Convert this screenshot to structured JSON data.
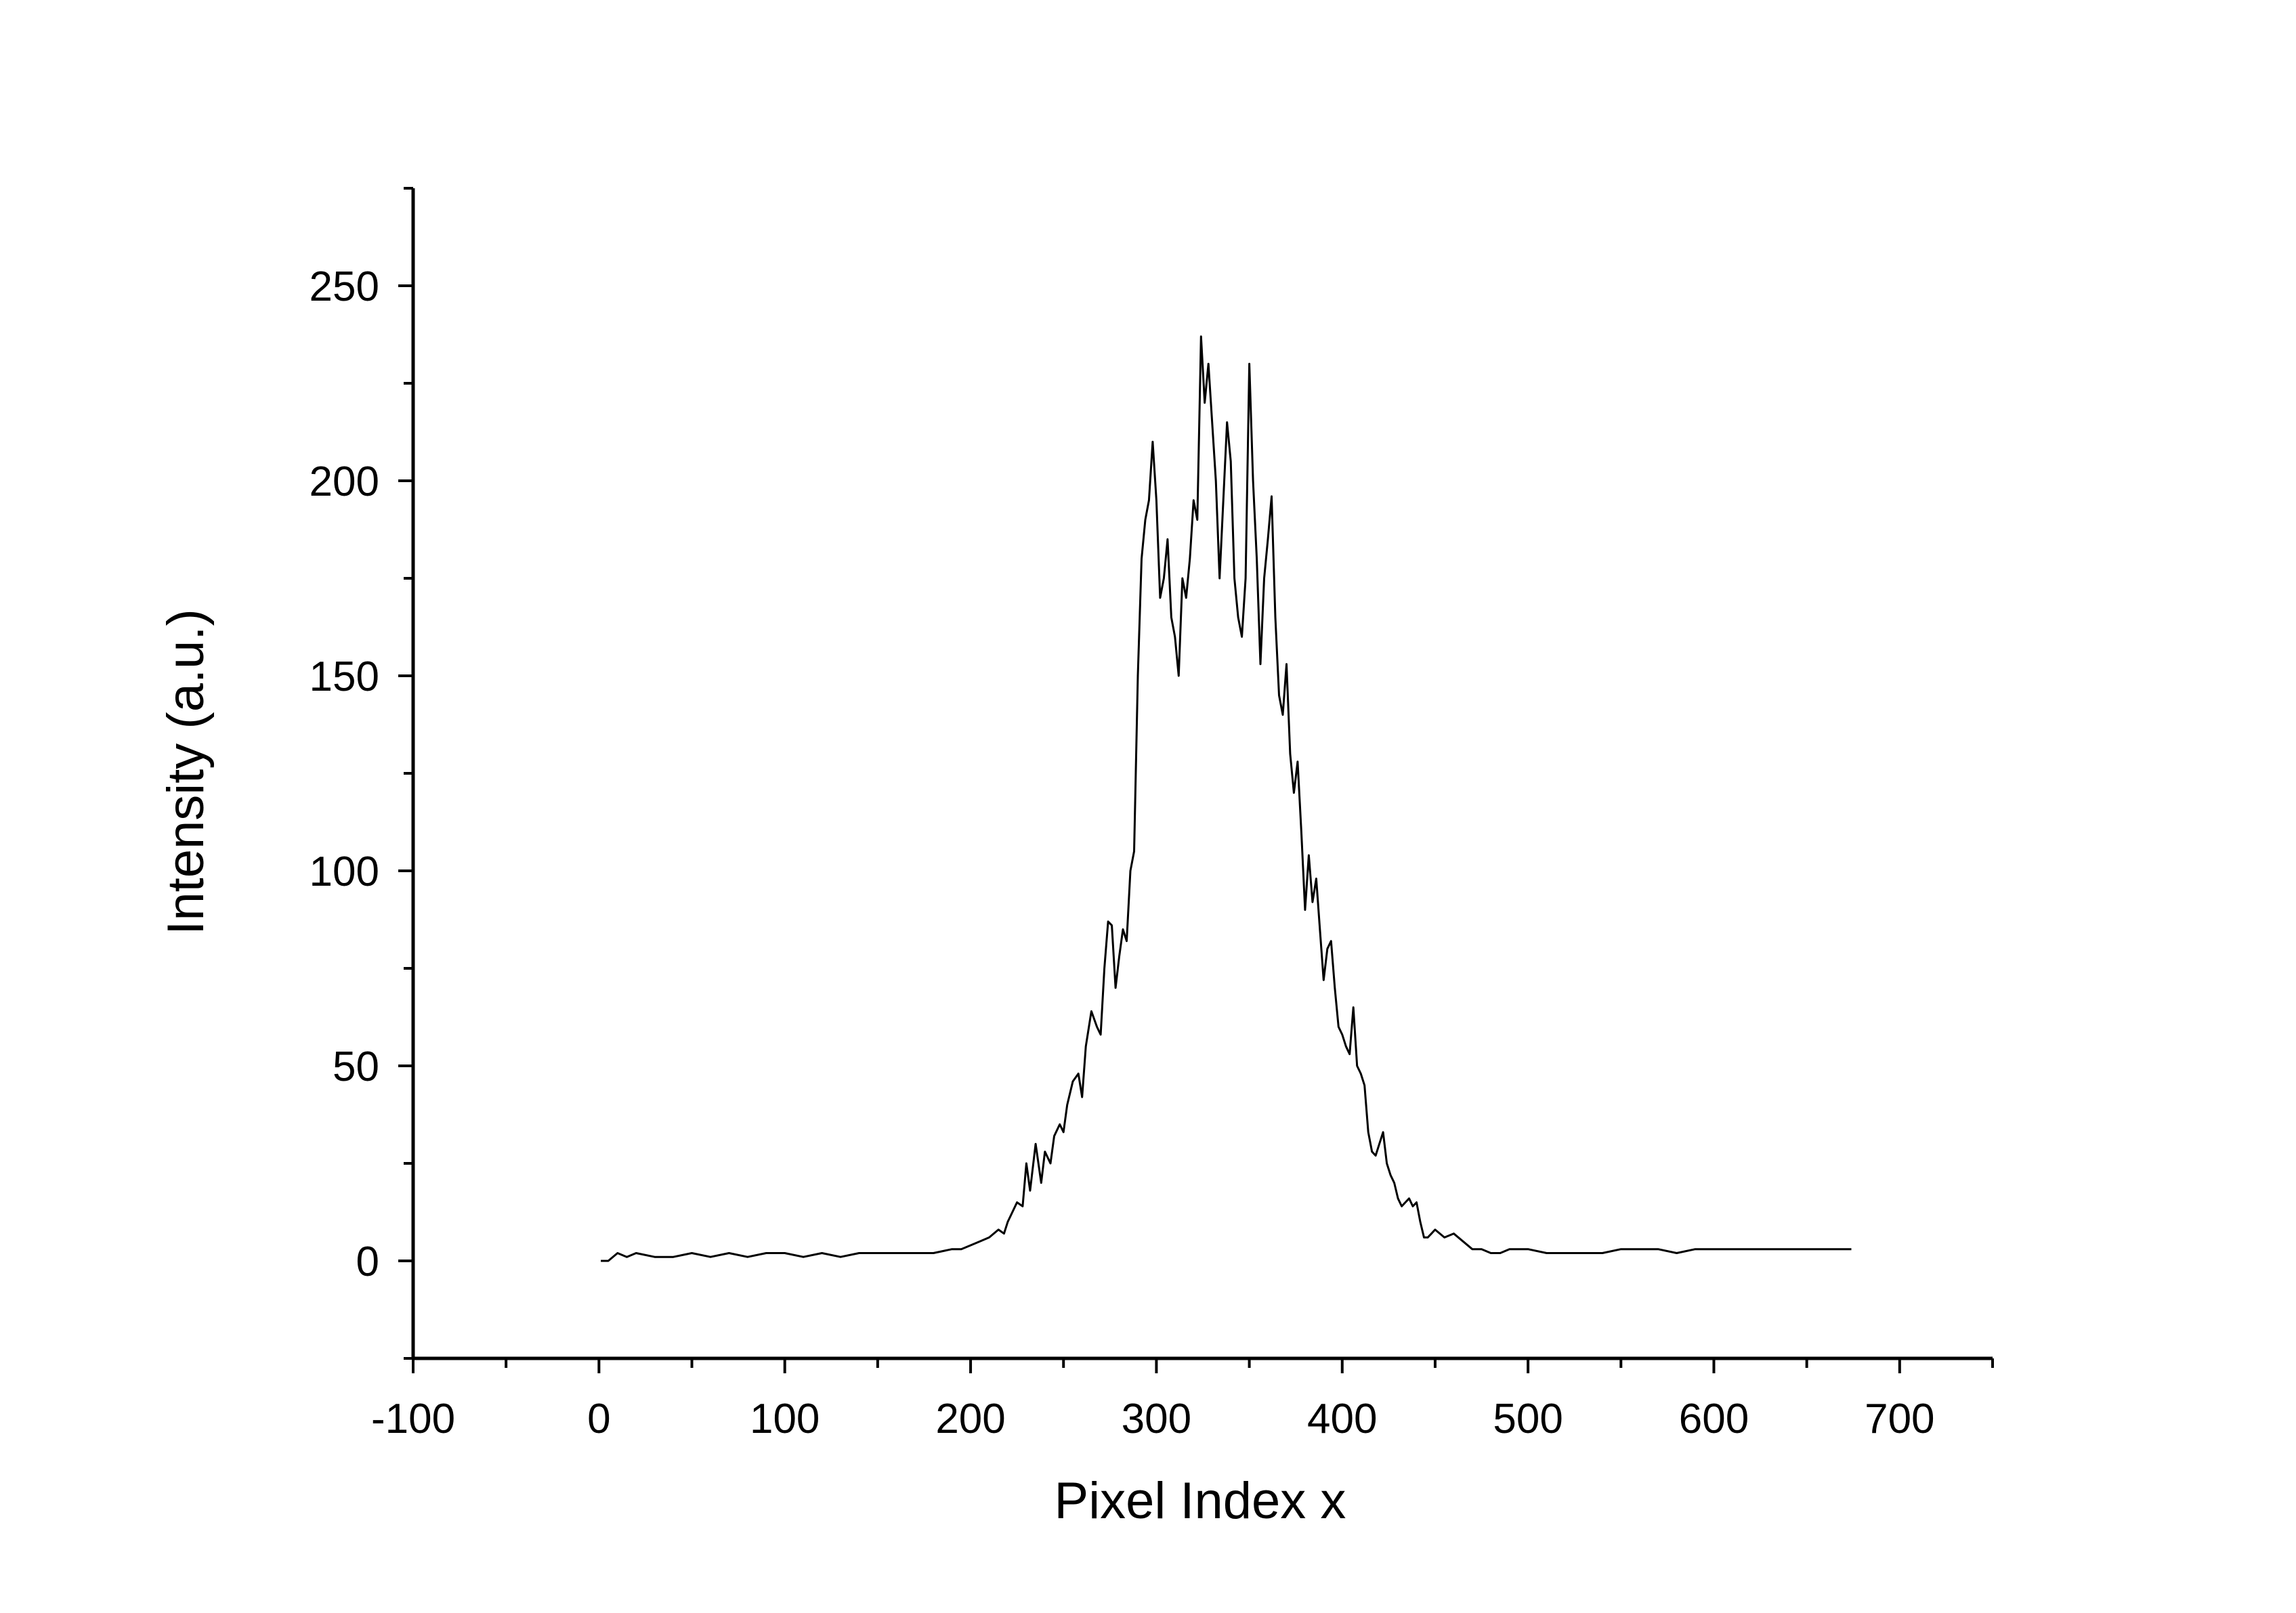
{
  "chart_data": {
    "type": "line",
    "title": "",
    "xlabel": "Pixel Index x",
    "ylabel": "Intensity (a.u.)",
    "xlim": [
      -100,
      750
    ],
    "ylim": [
      -25,
      275
    ],
    "x_ticks": [
      -100,
      0,
      100,
      200,
      300,
      400,
      500,
      600,
      700
    ],
    "x_tick_labels": [
      "-100",
      "0",
      "100",
      "200",
      "300",
      "400",
      "500",
      "600",
      "700"
    ],
    "y_ticks": [
      0,
      50,
      100,
      150,
      200,
      250
    ],
    "y_tick_labels": [
      "0",
      "50",
      "100",
      "150",
      "200",
      "250"
    ],
    "x_minor_step": 50,
    "y_minor_step": 25,
    "grid": false,
    "legend": "none",
    "line_color": "#000000",
    "series": [
      {
        "x": [
          1,
          5,
          10,
          15,
          20,
          30,
          40,
          50,
          60,
          70,
          80,
          90,
          100,
          110,
          120,
          130,
          140,
          150,
          160,
          170,
          180,
          190,
          195,
          200,
          205,
          210,
          215,
          218,
          220,
          222,
          225,
          228,
          230,
          232,
          235,
          238,
          240,
          243,
          245,
          248,
          250,
          252,
          255,
          258,
          260,
          262,
          265,
          268,
          270,
          272,
          274,
          276,
          278,
          280,
          282,
          284,
          286,
          288,
          290,
          292,
          294,
          296,
          298,
          300,
          302,
          304,
          306,
          308,
          310,
          312,
          314,
          316,
          318,
          320,
          322,
          324,
          326,
          328,
          330,
          332,
          334,
          336,
          338,
          340,
          342,
          344,
          346,
          348,
          350,
          352,
          354,
          356,
          358,
          360,
          362,
          364,
          366,
          368,
          370,
          372,
          374,
          376,
          378,
          380,
          382,
          384,
          386,
          388,
          390,
          392,
          394,
          396,
          398,
          400,
          402,
          404,
          406,
          408,
          410,
          412,
          414,
          416,
          418,
          420,
          422,
          424,
          426,
          428,
          430,
          432,
          434,
          436,
          438,
          440,
          442,
          444,
          446,
          448,
          450,
          455,
          460,
          465,
          470,
          475,
          480,
          485,
          490,
          500,
          510,
          520,
          530,
          540,
          550,
          560,
          570,
          580,
          590,
          600,
          610,
          620,
          630,
          640,
          650,
          660,
          670,
          674
        ],
        "y": [
          0,
          0,
          2,
          1,
          2,
          1,
          1,
          2,
          1,
          2,
          1,
          2,
          2,
          1,
          2,
          1,
          2,
          2,
          2,
          2,
          2,
          3,
          3,
          4,
          5,
          6,
          8,
          7,
          10,
          12,
          15,
          14,
          25,
          18,
          30,
          20,
          28,
          25,
          32,
          35,
          33,
          40,
          46,
          48,
          42,
          55,
          64,
          60,
          58,
          75,
          87,
          86,
          70,
          78,
          85,
          82,
          100,
          105,
          150,
          180,
          190,
          195,
          210,
          195,
          170,
          175,
          185,
          165,
          160,
          150,
          175,
          170,
          180,
          195,
          190,
          237,
          220,
          230,
          215,
          200,
          175,
          195,
          215,
          205,
          175,
          165,
          160,
          175,
          230,
          200,
          180,
          153,
          175,
          185,
          196,
          165,
          145,
          140,
          153,
          130,
          120,
          128,
          110,
          90,
          104,
          92,
          98,
          85,
          72,
          80,
          82,
          70,
          60,
          58,
          55,
          53,
          65,
          50,
          48,
          45,
          33,
          28,
          27,
          30,
          33,
          25,
          22,
          20,
          16,
          14,
          15,
          16,
          14,
          15,
          10,
          6,
          6,
          7,
          8,
          6,
          7,
          5,
          3,
          3,
          2,
          2,
          3,
          3,
          2,
          2,
          2,
          2,
          3,
          3,
          3,
          2,
          3,
          3,
          3,
          3,
          3,
          3,
          3,
          3,
          3,
          3
        ]
      }
    ]
  }
}
